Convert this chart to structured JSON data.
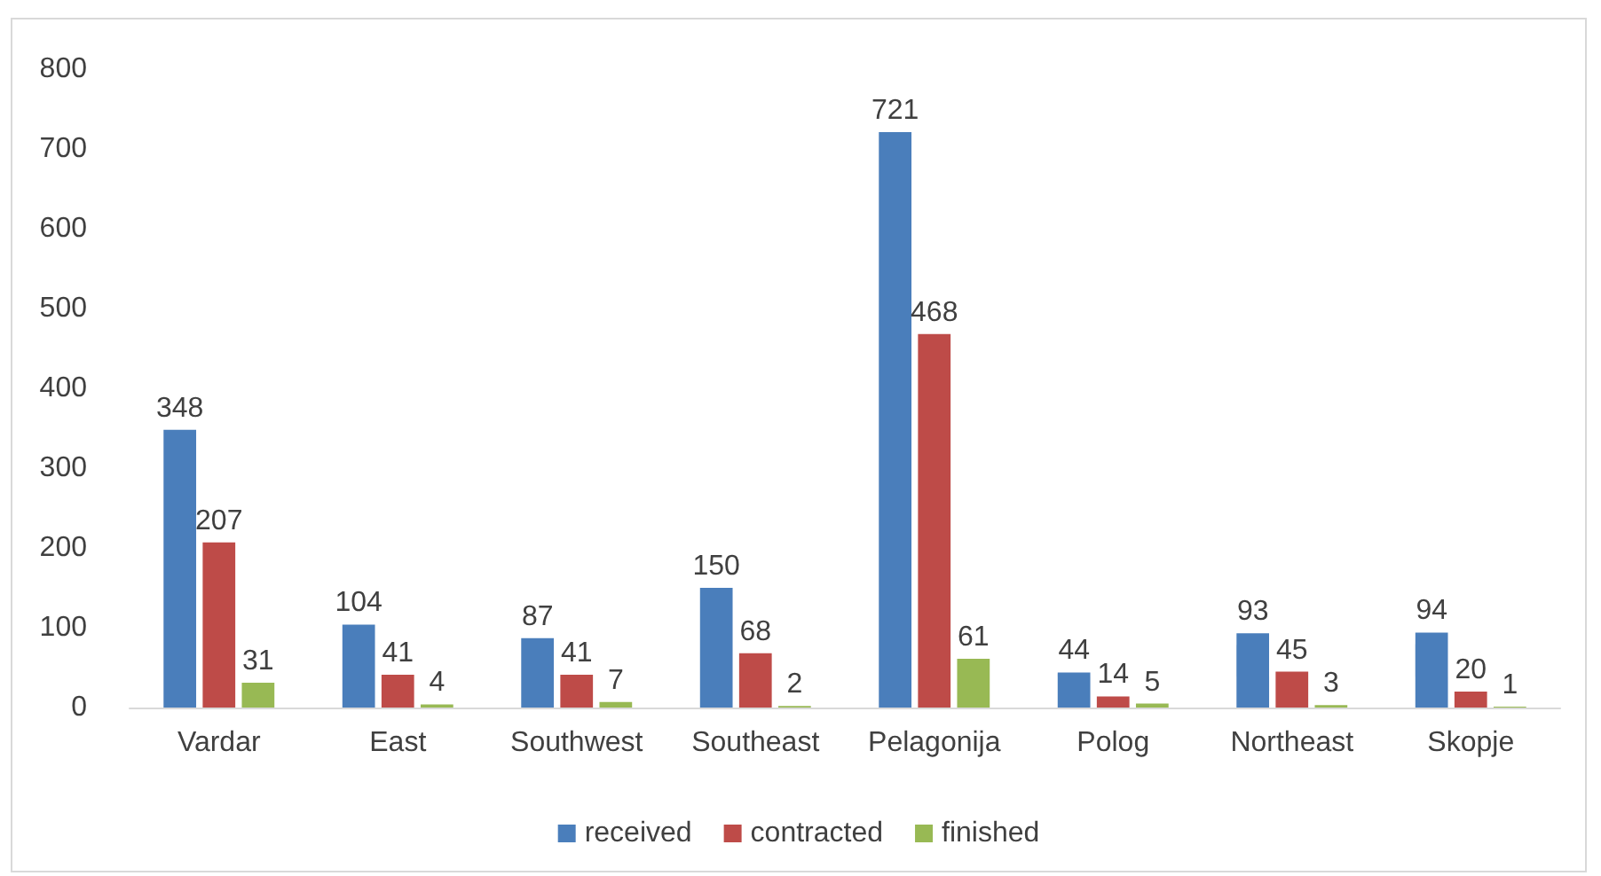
{
  "chart_data": {
    "type": "bar",
    "categories": [
      "Vardar",
      "East",
      "Southwest",
      "Southeast",
      "Pelagonija",
      "Polog",
      "Northeast",
      "Skopje"
    ],
    "series": [
      {
        "name": "received",
        "color": "#4a7ebb",
        "values": [
          348,
          104,
          87,
          150,
          721,
          44,
          93,
          94
        ]
      },
      {
        "name": "contracted",
        "color": "#be4b48",
        "values": [
          207,
          41,
          41,
          68,
          468,
          14,
          45,
          20
        ]
      },
      {
        "name": "finished",
        "color": "#98b954",
        "values": [
          31,
          4,
          7,
          2,
          61,
          5,
          3,
          1
        ]
      }
    ],
    "ylim": [
      0,
      800
    ],
    "yticks": [
      0,
      100,
      200,
      300,
      400,
      500,
      600,
      700,
      800
    ],
    "grid": false,
    "legend": "bottom",
    "data_labels": true
  }
}
